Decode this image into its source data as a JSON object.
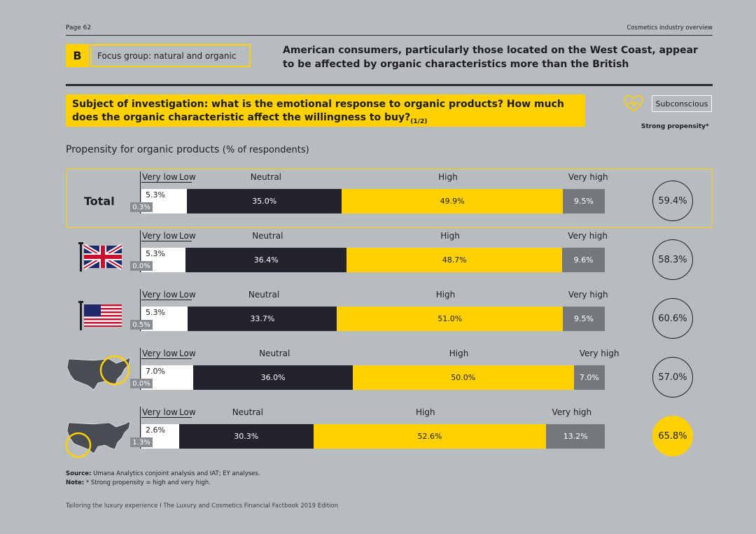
{
  "page": {
    "number": "Page 62",
    "section": "Cosmetics industry overview"
  },
  "focus": {
    "letter": "B",
    "label": "Focus group: natural and organic"
  },
  "headline": "American consumers, particularly those located on the West Coast, appear to be affected by organic characteristics more than the British",
  "subject": {
    "text": "Subject of investigation: what is the emotional response to organic products? How much does the organic characteristic affect the willingness to buy?",
    "sub": "(1/2)"
  },
  "badge": {
    "label": "Subconscious",
    "icon": "heart-pulse-icon"
  },
  "strong_label": "Strong propensity*",
  "chart_title": {
    "main": "Propensity for organic products",
    "unit": "(% of respondents)"
  },
  "source": {
    "label": "Source:",
    "text": " Umana Analytics conjoint analysis and IAT; EY analyses."
  },
  "note": {
    "label": "Note:",
    "text": " * Strong propensity = high and very high."
  },
  "footer": "Tailoring the luxury experience I The Luxury and Cosmetics Financial Factbook 2019 Edition",
  "colors": {
    "yellow": "#ffd100",
    "dark": "#22232d",
    "grey": "#74777c",
    "white": "#ffffff"
  },
  "chart_data": {
    "type": "bar",
    "stacked": true,
    "orientation": "horizontal",
    "unit": "%",
    "segments": [
      "Very low",
      "Low",
      "Neutral",
      "High",
      "Very high"
    ],
    "rows": [
      {
        "label": "Total",
        "icon": null,
        "values": [
          0.3,
          5.3,
          35.0,
          49.9,
          9.5
        ],
        "labels": [
          "0.3%",
          "5.3%",
          "35.0%",
          "49.9%",
          "9.5%"
        ],
        "strong": "59.4%",
        "highlight": false
      },
      {
        "label": "",
        "icon": "uk-flag-icon",
        "values": [
          0.0,
          5.3,
          36.4,
          48.7,
          9.6
        ],
        "labels": [
          "0.0%",
          "5.3%",
          "36.4%",
          "48.7%",
          "9.6%"
        ],
        "strong": "58.3%",
        "highlight": false
      },
      {
        "label": "",
        "icon": "us-flag-icon",
        "values": [
          0.5,
          5.3,
          33.7,
          51.0,
          9.5
        ],
        "labels": [
          "0.5%",
          "5.3%",
          "33.7%",
          "51.0%",
          "9.5%"
        ],
        "strong": "60.6%",
        "highlight": false
      },
      {
        "label": "",
        "icon": "us-east-coast-map-icon",
        "values": [
          0.0,
          7.0,
          36.0,
          50.0,
          7.0
        ],
        "labels": [
          "0.0%",
          "7.0%",
          "36.0%",
          "50.0%",
          "7.0%"
        ],
        "strong": "57.0%",
        "highlight": false
      },
      {
        "label": "",
        "icon": "us-west-coast-map-icon",
        "values": [
          1.3,
          2.6,
          30.3,
          52.6,
          13.2
        ],
        "labels": [
          "1.3%",
          "2.6%",
          "30.3%",
          "52.6%",
          "13.2%"
        ],
        "strong": "65.8%",
        "highlight": true
      }
    ]
  }
}
